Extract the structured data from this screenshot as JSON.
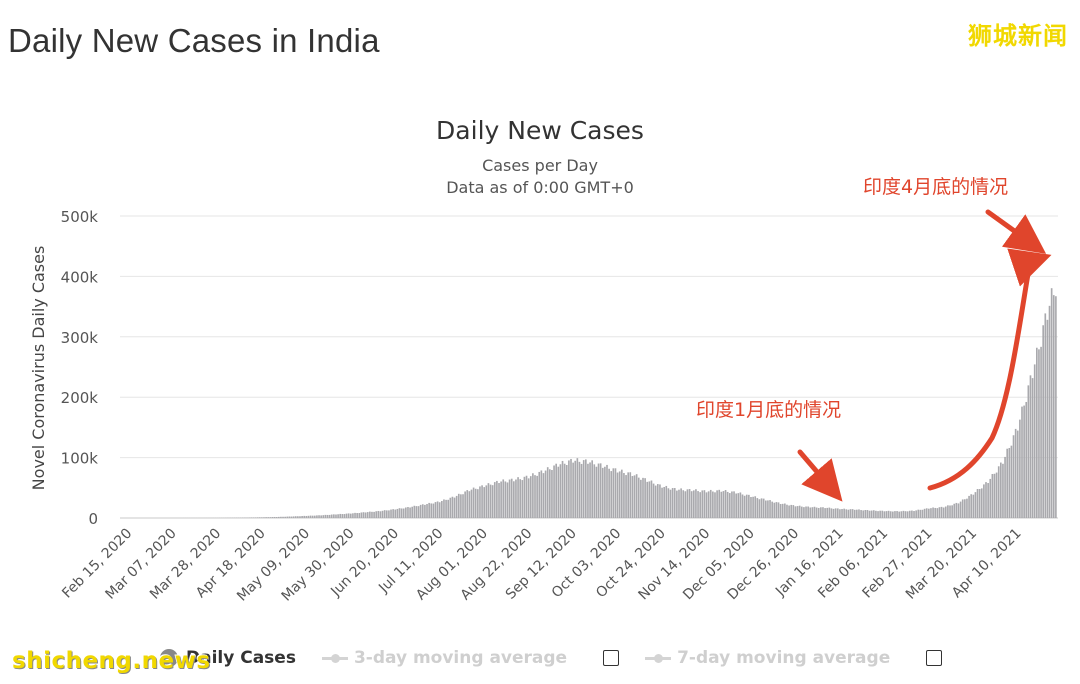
{
  "page": {
    "title": "Daily New Cases in India",
    "watermark_top": "狮城新闻",
    "watermark_bottom": "shicheng.news"
  },
  "annotations": {
    "late_april": "印度4月底的情况",
    "late_january": "印度1月底的情况",
    "color": "#e0452c"
  },
  "legend": {
    "daily_cases": "Daily Cases",
    "three_day": "3-day moving average",
    "seven_day": "7-day moving average"
  },
  "colors": {
    "bar": "#a9a9ad",
    "grid": "#e6e6e6",
    "axis_text": "#555555"
  },
  "chart_data": {
    "type": "bar",
    "title": "Daily New Cases",
    "subtitle": "Cases per Day",
    "subtitle2": "Data as of 0:00 GMT+0",
    "ylabel": "Novel Coronavirus Daily Cases",
    "xlabel": "",
    "ylim": [
      0,
      500000
    ],
    "yticks": [
      "0",
      "100k",
      "200k",
      "300k",
      "400k",
      "500k"
    ],
    "ytick_values": [
      0,
      100000,
      200000,
      300000,
      400000,
      500000
    ],
    "xticks": [
      "Feb 15, 2020",
      "Mar 07, 2020",
      "Mar 28, 2020",
      "Apr 18, 2020",
      "May 09, 2020",
      "May 30, 2020",
      "Jun 20, 2020",
      "Jul 11, 2020",
      "Aug 01, 2020",
      "Aug 22, 2020",
      "Sep 12, 2020",
      "Oct 03, 2020",
      "Oct 24, 2020",
      "Nov 14, 2020",
      "Dec 05, 2020",
      "Dec 26, 2020",
      "Jan 16, 2021",
      "Feb 06, 2021",
      "Feb 27, 2021",
      "Mar 20, 2021",
      "Apr 10, 2021"
    ],
    "grid": true,
    "series": [
      {
        "name": "Daily Cases",
        "points_weekly": [
          [
            "Feb 15, 2020",
            0
          ],
          [
            "Feb 22, 2020",
            0
          ],
          [
            "Feb 29, 2020",
            0
          ],
          [
            "Mar 07, 2020",
            10
          ],
          [
            "Mar 14, 2020",
            30
          ],
          [
            "Mar 21, 2020",
            100
          ],
          [
            "Mar 28, 2020",
            200
          ],
          [
            "Apr 04, 2020",
            500
          ],
          [
            "Apr 11, 2020",
            800
          ],
          [
            "Apr 18, 2020",
            1200
          ],
          [
            "Apr 25, 2020",
            1700
          ],
          [
            "May 02, 2020",
            2500
          ],
          [
            "May 09, 2020",
            3500
          ],
          [
            "May 16, 2020",
            4500
          ],
          [
            "May 23, 2020",
            6000
          ],
          [
            "May 30, 2020",
            7500
          ],
          [
            "Jun 06, 2020",
            9500
          ],
          [
            "Jun 13, 2020",
            11500
          ],
          [
            "Jun 20, 2020",
            14500
          ],
          [
            "Jun 27, 2020",
            18000
          ],
          [
            "Jul 04, 2020",
            22500
          ],
          [
            "Jul 11, 2020",
            27000
          ],
          [
            "Jul 18, 2020",
            35000
          ],
          [
            "Jul 25, 2020",
            46000
          ],
          [
            "Aug 01, 2020",
            53000
          ],
          [
            "Aug 08, 2020",
            60000
          ],
          [
            "Aug 15, 2020",
            63000
          ],
          [
            "Aug 22, 2020",
            68000
          ],
          [
            "Aug 29, 2020",
            77000
          ],
          [
            "Sep 05, 2020",
            88000
          ],
          [
            "Sep 12, 2020",
            95000
          ],
          [
            "Sep 19, 2020",
            93000
          ],
          [
            "Sep 26, 2020",
            86000
          ],
          [
            "Oct 03, 2020",
            78000
          ],
          [
            "Oct 10, 2020",
            72000
          ],
          [
            "Oct 17, 2020",
            62000
          ],
          [
            "Oct 24, 2020",
            52000
          ],
          [
            "Oct 31, 2020",
            47000
          ],
          [
            "Nov 07, 2020",
            46000
          ],
          [
            "Nov 14, 2020",
            44000
          ],
          [
            "Nov 21, 2020",
            45000
          ],
          [
            "Nov 28, 2020",
            42000
          ],
          [
            "Dec 05, 2020",
            36000
          ],
          [
            "Dec 12, 2020",
            30000
          ],
          [
            "Dec 19, 2020",
            24000
          ],
          [
            "Dec 26, 2020",
            20000
          ],
          [
            "Jan 02, 2021",
            18000
          ],
          [
            "Jan 09, 2021",
            17000
          ],
          [
            "Jan 16, 2021",
            15000
          ],
          [
            "Jan 23, 2021",
            14000
          ],
          [
            "Jan 30, 2021",
            12500
          ],
          [
            "Feb 06, 2021",
            11500
          ],
          [
            "Feb 13, 2021",
            11000
          ],
          [
            "Feb 20, 2021",
            12000
          ],
          [
            "Feb 27, 2021",
            16000
          ],
          [
            "Mar 06, 2021",
            18000
          ],
          [
            "Mar 13, 2021",
            25000
          ],
          [
            "Mar 20, 2021",
            40000
          ],
          [
            "Mar 27, 2021",
            60000
          ],
          [
            "Apr 03, 2021",
            93000
          ],
          [
            "Apr 10, 2021",
            150000
          ],
          [
            "Apr 17, 2021",
            240000
          ],
          [
            "Apr 24, 2021",
            340000
          ],
          [
            "Apr 28, 2021",
            385000
          ]
        ]
      }
    ]
  }
}
